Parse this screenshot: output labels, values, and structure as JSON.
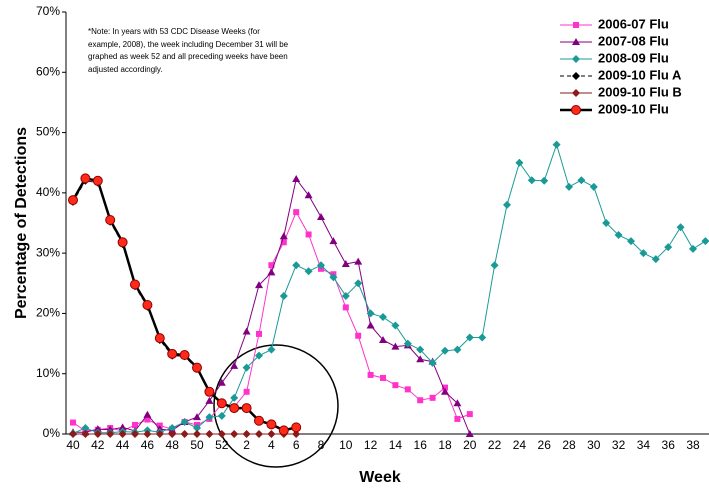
{
  "chart_data": {
    "type": "line",
    "x_label": "Week",
    "y_label": "Percentage of Detections",
    "note": "*Note: In years with 53 CDC Disease Weeks (for example, 2008), the week including December 31 will be graphed as week 52 and all preceding weeks have been adjusted accordingly.",
    "categories": [
      40,
      null,
      42,
      null,
      44,
      null,
      46,
      null,
      48,
      null,
      50,
      null,
      52,
      null,
      2,
      null,
      4,
      null,
      6,
      null,
      8,
      null,
      10,
      null,
      12,
      null,
      14,
      null,
      16,
      null,
      18,
      null,
      20,
      null,
      22,
      null,
      24,
      null,
      26,
      null,
      28,
      null,
      30,
      null,
      32,
      null,
      34,
      null,
      36,
      null,
      38,
      null
    ],
    "ylim": [
      0,
      70
    ],
    "yticks": [
      {
        "value": 0,
        "label": "0%"
      },
      {
        "value": 10,
        "label": "10%"
      },
      {
        "value": 20,
        "label": "20%"
      },
      {
        "value": 30,
        "label": "30%"
      },
      {
        "value": 40,
        "label": "40%"
      },
      {
        "value": 50,
        "label": "50%"
      },
      {
        "value": 60,
        "label": "60%"
      },
      {
        "value": 70,
        "label": "70%"
      }
    ],
    "grid": false,
    "legend": "upper right",
    "series": [
      {
        "name": "2006-07 Flu",
        "color": "#ff33cc",
        "marker": "square",
        "width": 1,
        "values": [
          1.9,
          0.5,
          0.7,
          1,
          0.5,
          1.5,
          2.4,
          1.4,
          0.8,
          2,
          1.5,
          2.5,
          5,
          4.5,
          7,
          16.6,
          28,
          31.8,
          36.8,
          33.1,
          27.4,
          26.5,
          21,
          16.3,
          9.8,
          9.3,
          8.1,
          7.4,
          5.6,
          6,
          7.7,
          2.5,
          3.3,
          null,
          null,
          null,
          null,
          null,
          null,
          null,
          null,
          null,
          null,
          null,
          null,
          null,
          null,
          null,
          null,
          null,
          null,
          null
        ]
      },
      {
        "name": "2007-08 Flu",
        "color": "#800080",
        "marker": "triangle",
        "width": 1,
        "values": [
          0.3,
          0.3,
          0.8,
          0.7,
          1.1,
          0.5,
          3.2,
          0.8,
          0.6,
          2,
          2.8,
          5.5,
          8.5,
          11.3,
          17,
          24.7,
          26.8,
          32.8,
          42.3,
          39.6,
          36,
          32,
          28.2,
          28.6,
          18,
          15.6,
          14.5,
          14.7,
          12.4,
          12,
          7,
          5.1,
          0,
          null,
          null,
          null,
          null,
          null,
          null,
          null,
          null,
          null,
          null,
          null,
          null,
          null,
          null,
          null,
          null,
          null,
          null,
          null
        ]
      },
      {
        "name": "2008-09 Flu",
        "color": "#1a9a96",
        "marker": "diamond",
        "width": 1,
        "values": [
          0.1,
          1,
          0.2,
          0.2,
          0.4,
          0.3,
          0.6,
          0.3,
          1,
          2,
          1,
          2.8,
          3,
          6,
          11,
          13,
          14,
          22.9,
          28,
          27,
          28,
          26,
          22.9,
          25,
          20,
          19.4,
          18,
          15,
          14,
          11.8,
          13.8,
          14,
          16,
          16,
          28,
          38,
          45,
          42.1,
          42,
          48,
          41,
          42.1,
          41,
          35,
          33,
          32,
          30,
          29,
          31,
          34.3,
          30.7,
          32
        ]
      },
      {
        "name": "2009-10 Flu A",
        "color": "#000000",
        "marker": "diamond",
        "width": 1,
        "dashed": true,
        "values": [
          38.5,
          42,
          41.7,
          35.2,
          31.5,
          24.5,
          21.1,
          15.6,
          13,
          12.9,
          10.8,
          6.9,
          5,
          4.2,
          4.2,
          2.1,
          1.5,
          0.6,
          1,
          null,
          null,
          null,
          null,
          null,
          null,
          null,
          null,
          null,
          null,
          null,
          null,
          null,
          null,
          null,
          null,
          null,
          null,
          null,
          null,
          null,
          null,
          null,
          null,
          null,
          null,
          null,
          null,
          null,
          null,
          null,
          null,
          null
        ]
      },
      {
        "name": "2009-10 Flu B",
        "color": "#8b1a1a",
        "marker": "diamond",
        "width": 1,
        "values": [
          0,
          0,
          0,
          0,
          0,
          0,
          0,
          0,
          0,
          0,
          0,
          0,
          0,
          0,
          0,
          0,
          0,
          0,
          0,
          null,
          null,
          null,
          null,
          null,
          null,
          null,
          null,
          null,
          null,
          null,
          null,
          null,
          null,
          null,
          null,
          null,
          null,
          null,
          null,
          null,
          null,
          null,
          null,
          null,
          null,
          null,
          null,
          null,
          null,
          null,
          null,
          null
        ]
      },
      {
        "name": "2009-10 Flu",
        "color": "#000000",
        "marker_color": "#ff2a1a",
        "marker": "circle",
        "width": 2.5,
        "values": [
          38.8,
          42.4,
          42,
          35.5,
          31.8,
          24.8,
          21.4,
          15.9,
          13.3,
          13.1,
          11,
          7,
          5.1,
          4.3,
          4.3,
          2.2,
          1.6,
          0.6,
          1.1,
          null,
          null,
          null,
          null,
          null,
          null,
          null,
          null,
          null,
          null,
          null,
          null,
          null,
          null,
          null,
          null,
          null,
          null,
          null,
          null,
          null,
          null,
          null,
          null,
          null,
          null,
          null,
          null,
          null,
          null,
          null,
          null,
          null
        ]
      }
    ]
  }
}
